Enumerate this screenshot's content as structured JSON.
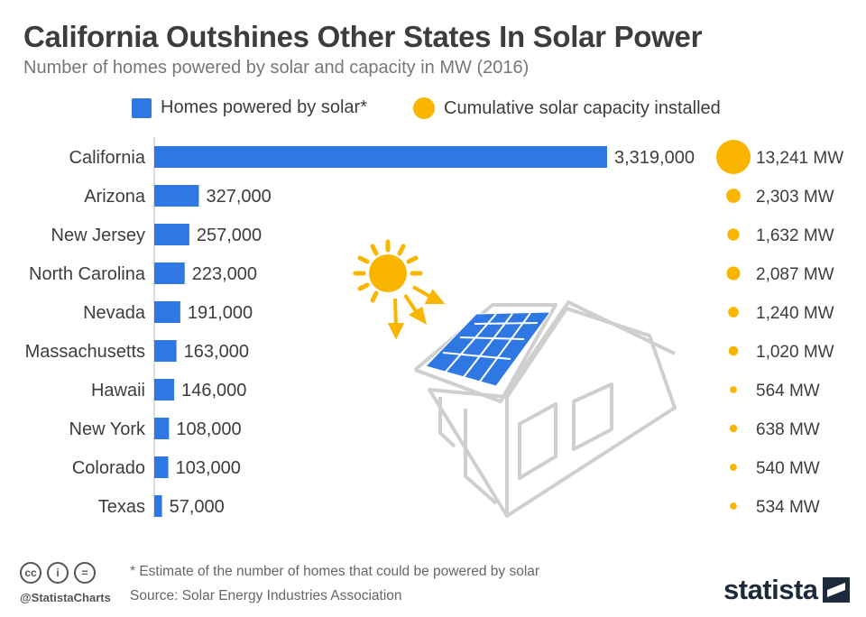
{
  "header": {
    "title": "California Outshines Other States In Solar Power",
    "subtitle": "Number of homes powered by solar and capacity in MW (2016)"
  },
  "legend": {
    "homes_label": "Homes powered by solar*",
    "capacity_label": "Cumulative solar capacity installed"
  },
  "colors": {
    "bar": "#2f78e4",
    "bubble": "#f9b500",
    "house_outline": "#cfcfcf",
    "panel": "#2f78e4"
  },
  "chart_data": {
    "type": "bar",
    "orientation": "horizontal",
    "title": "California Outshines Other States In Solar Power",
    "subtitle": "Number of homes powered by solar and capacity in MW (2016)",
    "categories": [
      "California",
      "Arizona",
      "New Jersey",
      "North Carolina",
      "Nevada",
      "Massachusetts",
      "Hawaii",
      "New York",
      "Colorado",
      "Texas"
    ],
    "series": [
      {
        "name": "Homes powered by solar*",
        "values": [
          3319000,
          327000,
          257000,
          223000,
          191000,
          163000,
          146000,
          108000,
          103000,
          57000
        ],
        "labels": [
          "3,319,000",
          "327,000",
          "257,000",
          "223,000",
          "191,000",
          "163,000",
          "146,000",
          "108,000",
          "103,000",
          "57,000"
        ]
      },
      {
        "name": "Cumulative solar capacity installed",
        "marker": "bubble",
        "values": [
          13241,
          2303,
          1632,
          2087,
          1240,
          1020,
          564,
          638,
          540,
          534
        ],
        "labels": [
          "13,241 MW",
          "2,303 MW",
          "1,632 MW",
          "2,087 MW",
          "1,240 MW",
          "1,020 MW",
          "564 MW",
          "638 MW",
          "540 MW",
          "534 MW"
        ]
      }
    ],
    "grid": false,
    "legend_position": "top"
  },
  "footer": {
    "note": "* Estimate of the number of homes that could be powered by solar",
    "source": "Source: Solar Energy Industries Association",
    "handle": "@StatistaCharts",
    "cc_icons": [
      {
        "name": "cc-icon",
        "glyph": "cc"
      },
      {
        "name": "attribution-icon",
        "glyph": "i"
      },
      {
        "name": "no-derivatives-icon",
        "glyph": "="
      }
    ],
    "brand": "statista"
  }
}
